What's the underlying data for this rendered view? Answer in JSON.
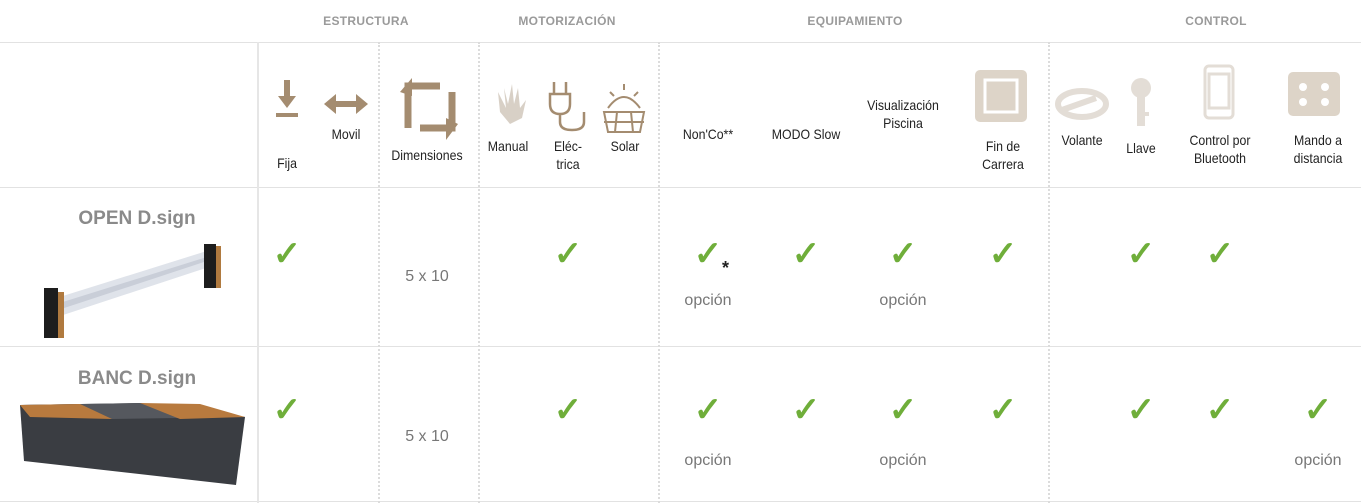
{
  "groups": [
    "ESTRUCTURA",
    "MOTORIZACIÓN",
    "EQUIPAMIENTO",
    "CONTROL"
  ],
  "columns": [
    "Fija",
    "Movil",
    "Dimensiones",
    "Manual",
    "Eléc-\ntrica",
    "Solar",
    "Non'Co**",
    "MODO Slow",
    "Visualización\nPiscina",
    "Fin de\nCarrera",
    "Volante",
    "Llave",
    "Control por\nBluetooth",
    "Mando a\ndistancia"
  ],
  "rows": [
    {
      "name": "OPEN D.sign",
      "cells": [
        {
          "mark": "✓"
        },
        null,
        {
          "text": "5 x 10"
        },
        null,
        {
          "mark": "✓"
        },
        null,
        {
          "mark": "✓",
          "sup": "*",
          "note": "opción"
        },
        {
          "mark": "✓"
        },
        {
          "mark": "✓",
          "note": "opción"
        },
        {
          "mark": "✓"
        },
        null,
        {
          "mark": "✓"
        },
        {
          "mark": "✓"
        },
        null
      ]
    },
    {
      "name": "BANC D.sign",
      "cells": [
        {
          "mark": "✓"
        },
        null,
        {
          "text": "5 x 10"
        },
        null,
        {
          "mark": "✓"
        },
        null,
        {
          "mark": "✓",
          "note": "opción"
        },
        {
          "mark": "✓"
        },
        {
          "mark": "✓",
          "note": "opción"
        },
        {
          "mark": "✓"
        },
        null,
        {
          "mark": "✓"
        },
        {
          "mark": "✓"
        },
        {
          "mark": "✓",
          "note": "opción"
        }
      ]
    }
  ]
}
